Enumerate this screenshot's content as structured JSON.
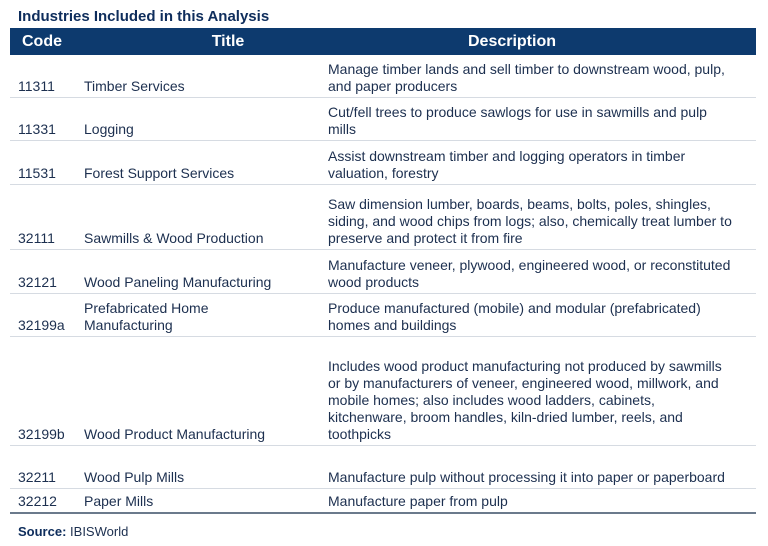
{
  "title": "Industries Included in this Analysis",
  "columns": [
    "Code",
    "Title",
    "Description"
  ],
  "rows": [
    {
      "code": "11311",
      "title": "Timber Services",
      "description": "Manage timber lands and sell timber to downstream wood, pulp, and paper producers"
    },
    {
      "code": "11331",
      "title": "Logging",
      "description": "Cut/fell trees to produce sawlogs for use in sawmills and pulp mills"
    },
    {
      "code": "11531",
      "title": "Forest Support Services",
      "description": "Assist downstream timber and logging operators in timber valuation, forestry"
    },
    {
      "code": "32111",
      "title": "Sawmills & Wood Production",
      "description": "Saw dimension lumber, boards, beams, bolts, poles, shingles, siding, and wood chips from logs; also, chemically treat lumber to preserve and protect it from fire"
    },
    {
      "code": "32121",
      "title": "Wood Paneling Manufacturing",
      "description": "Manufacture veneer, plywood, engineered wood, or reconstituted wood products"
    },
    {
      "code": "32199a",
      "title": "Prefabricated Home Manufacturing",
      "description": "Produce manufactured (mobile) and modular (prefabricated) homes and buildings"
    },
    {
      "code": "32199b",
      "title": "Wood Product Manufacturing",
      "description": "Includes wood product manufacturing not produced by sawmills or by manufacturers of veneer, engineered wood, millwork, and mobile homes; also includes wood ladders, cabinets, kitchenware, broom handles, kiln-dried lumber, reels, and toothpicks"
    },
    {
      "code": "32211",
      "title": "Wood Pulp Mills",
      "description": "Manufacture pulp without processing it into paper or paperboard"
    },
    {
      "code": "32212",
      "title": "Paper Mills",
      "description": "Manufacture paper from pulp"
    }
  ],
  "source": {
    "label": "Source:",
    "value": "IBISWorld"
  },
  "colors": {
    "header_bg": "#0d3a6e",
    "text": "#1c2f4f"
  }
}
